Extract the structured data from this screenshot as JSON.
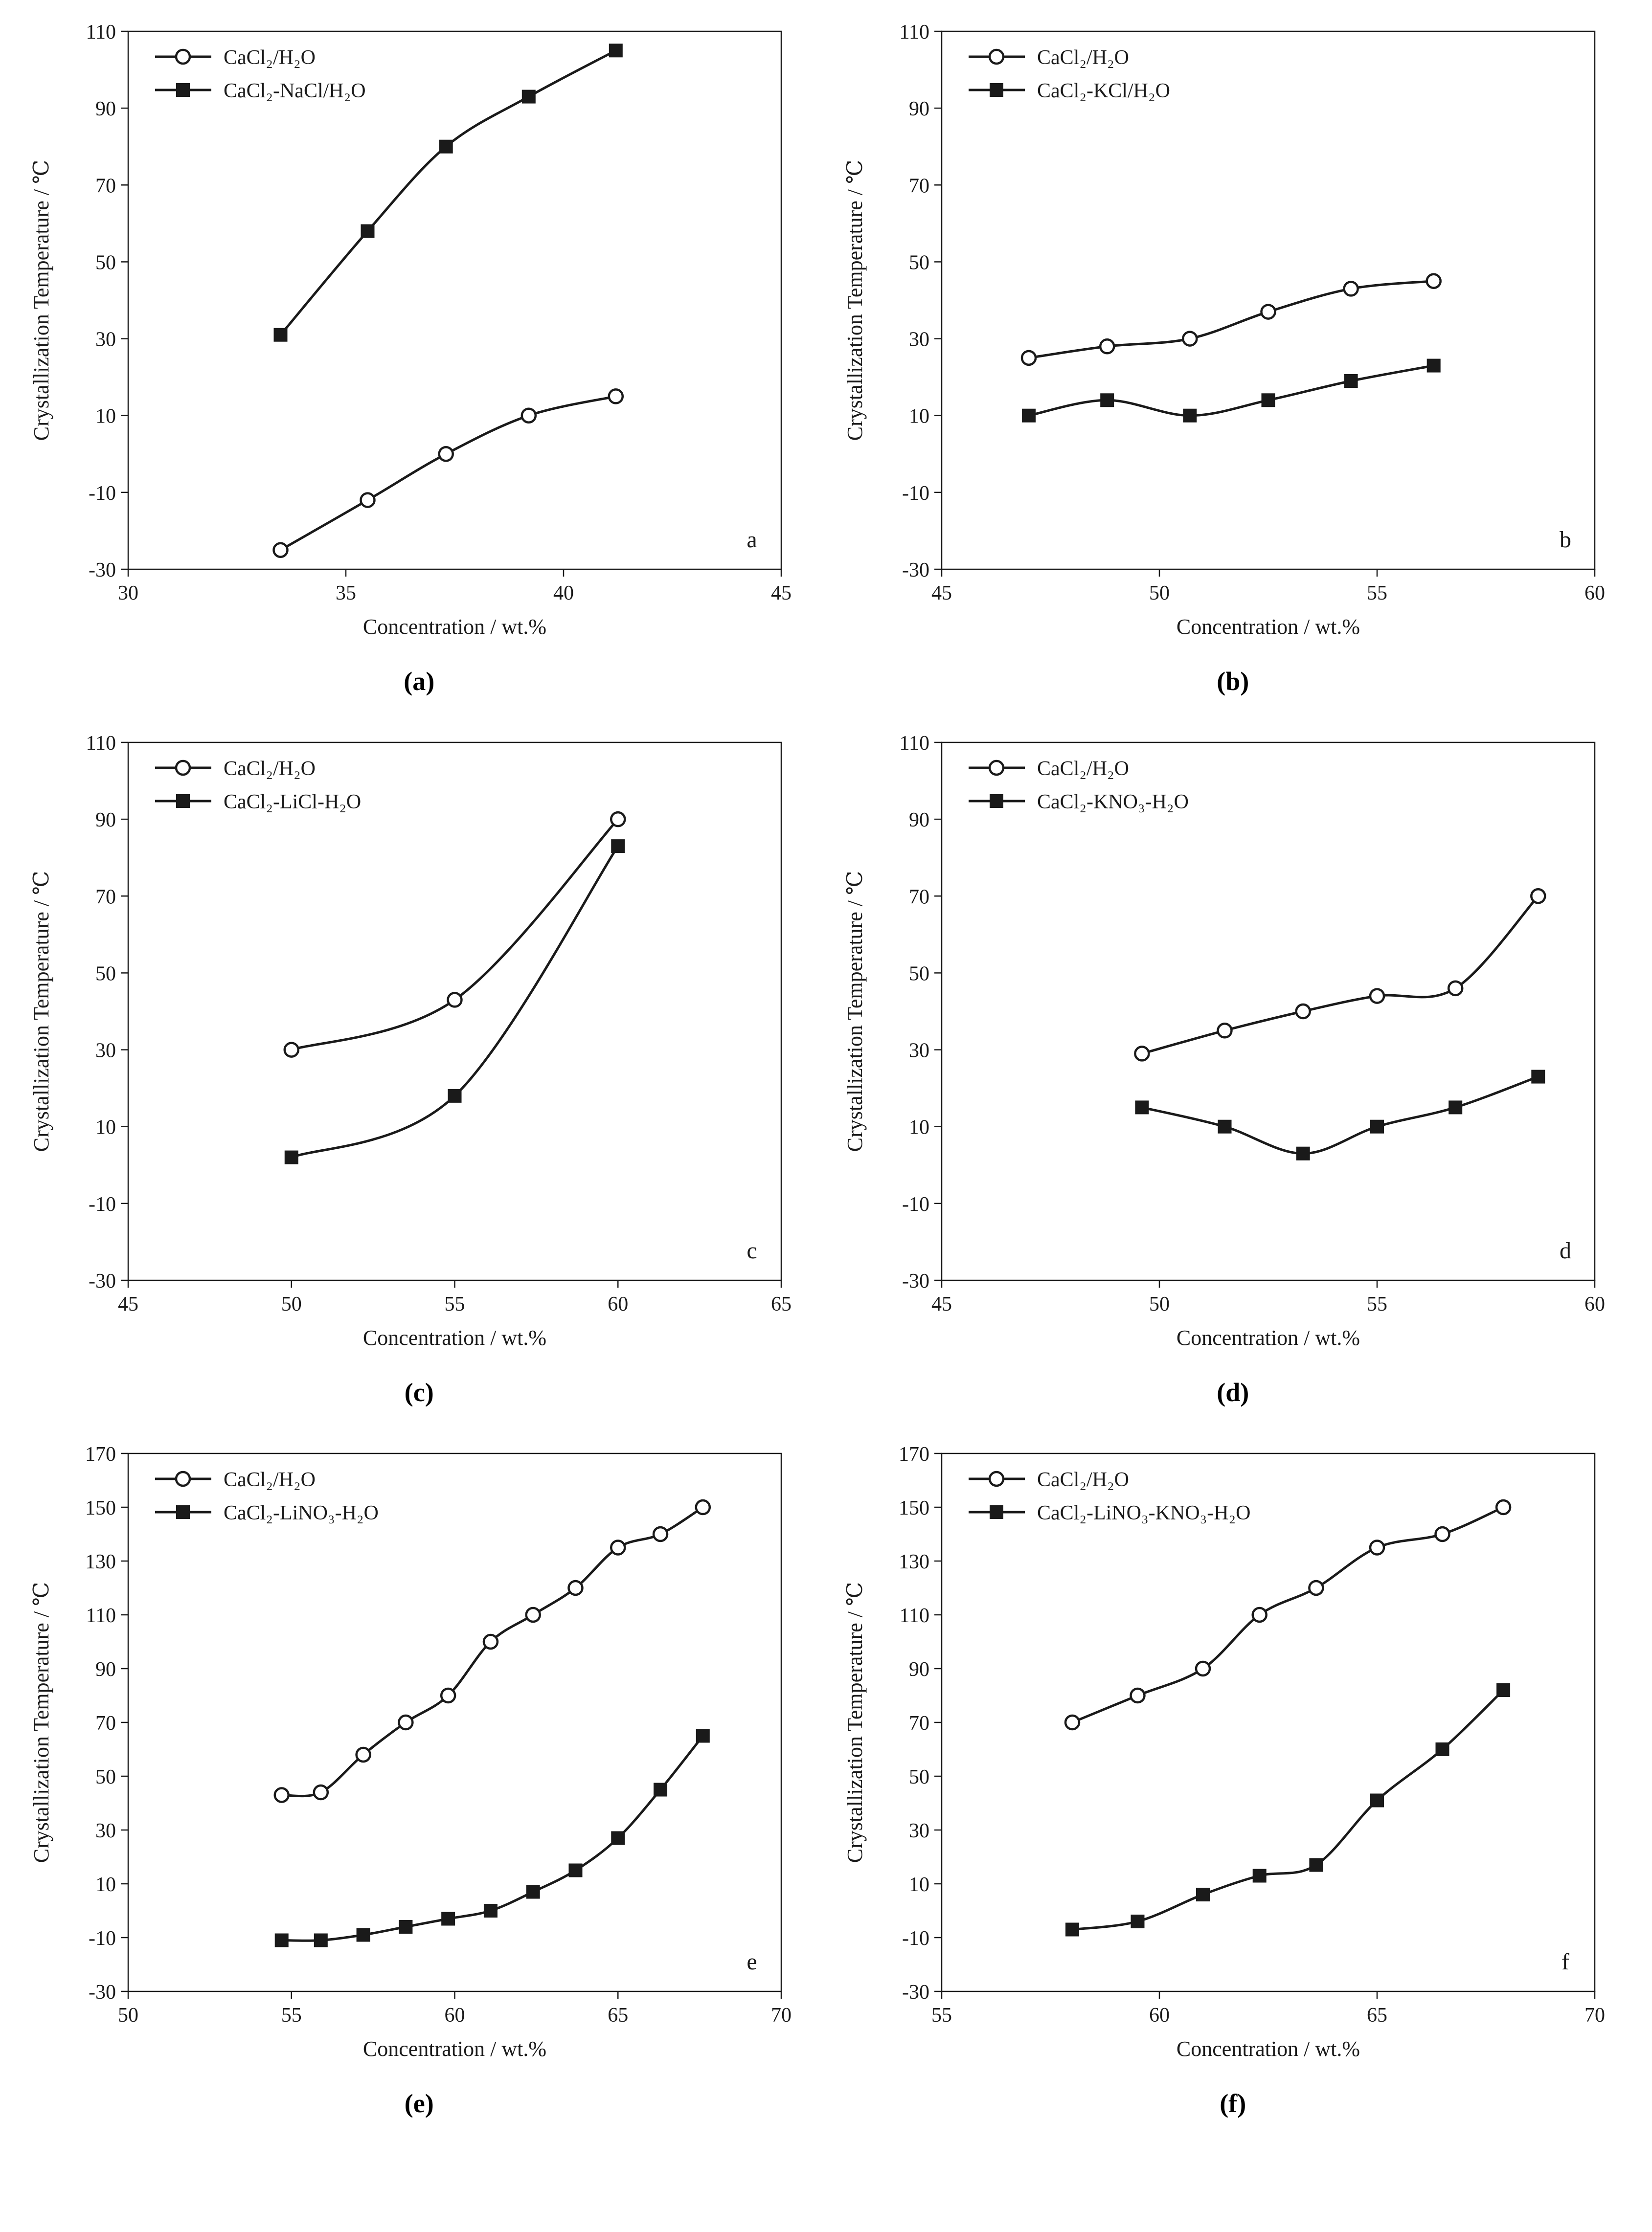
{
  "figure": {
    "captions": [
      "(a)",
      "(b)",
      "(c)",
      "(d)",
      "(e)",
      "(f)"
    ]
  },
  "chart_data": [
    {
      "type": "line",
      "panel_label": "a",
      "caption": "(a)",
      "xlabel": "Concentration / wt.%",
      "ylabel": "Crystallization Temperature / ℃",
      "xlim": [
        30,
        45
      ],
      "xticks": [
        30,
        35,
        40,
        45
      ],
      "ylim": [
        -30,
        110
      ],
      "yticks": [
        -30,
        -10,
        10,
        30,
        50,
        70,
        90,
        110
      ],
      "grid": false,
      "legend_position": "top-left",
      "series": [
        {
          "name": "CaCl₂/H₂O",
          "marker": "circle-open",
          "x": [
            33.5,
            35.5,
            37.3,
            39.2,
            41.2
          ],
          "y": [
            -25,
            -12,
            0,
            10,
            15
          ]
        },
        {
          "name": "CaCl₂-NaCl/H₂O",
          "marker": "square-filled",
          "x": [
            33.5,
            35.5,
            37.3,
            39.2,
            41.2
          ],
          "y": [
            31,
            58,
            80,
            93,
            105
          ]
        }
      ]
    },
    {
      "type": "line",
      "panel_label": "b",
      "caption": "(b)",
      "xlabel": "Concentration / wt.%",
      "ylabel": "Crystallization Temperature / ℃",
      "xlim": [
        45,
        60
      ],
      "xticks": [
        45,
        50,
        55,
        60
      ],
      "ylim": [
        -30,
        110
      ],
      "yticks": [
        -30,
        -10,
        10,
        30,
        50,
        70,
        90,
        110
      ],
      "grid": false,
      "legend_position": "top-left",
      "series": [
        {
          "name": "CaCl₂/H₂O",
          "marker": "circle-open",
          "x": [
            47.0,
            48.8,
            50.7,
            52.5,
            54.4,
            56.3
          ],
          "y": [
            25,
            28,
            30,
            37,
            43,
            45
          ]
        },
        {
          "name": "CaCl₂-KCl/H₂O",
          "marker": "square-filled",
          "x": [
            47.0,
            48.8,
            50.7,
            52.5,
            54.4,
            56.3
          ],
          "y": [
            10,
            14,
            10,
            14,
            19,
            23
          ]
        }
      ]
    },
    {
      "type": "line",
      "panel_label": "c",
      "caption": "(c)",
      "xlabel": "Concentration / wt.%",
      "ylabel": "Crystallization Temperature / ℃",
      "xlim": [
        45,
        65
      ],
      "xticks": [
        45,
        50,
        55,
        60,
        65
      ],
      "ylim": [
        -30,
        110
      ],
      "yticks": [
        -30,
        -10,
        10,
        30,
        50,
        70,
        90,
        110
      ],
      "grid": false,
      "legend_position": "top-left",
      "series": [
        {
          "name": "CaCl₂/H₂O",
          "marker": "circle-open",
          "x": [
            50,
            55,
            60
          ],
          "y": [
            30,
            43,
            90
          ]
        },
        {
          "name": "CaCl₂-LiCl-H₂O",
          "marker": "square-filled",
          "x": [
            50,
            55,
            60
          ],
          "y": [
            2,
            18,
            83
          ]
        }
      ]
    },
    {
      "type": "line",
      "panel_label": "d",
      "caption": "(d)",
      "xlabel": "Concentration / wt.%",
      "ylabel": "Crystallization Temperature / ℃",
      "xlim": [
        45,
        60
      ],
      "xticks": [
        45,
        50,
        55,
        60
      ],
      "ylim": [
        -30,
        110
      ],
      "yticks": [
        -30,
        -10,
        10,
        30,
        50,
        70,
        90,
        110
      ],
      "grid": false,
      "legend_position": "top-left",
      "series": [
        {
          "name": "CaCl₂/H₂O",
          "marker": "circle-open",
          "x": [
            49.6,
            51.5,
            53.3,
            55.0,
            56.8,
            58.7
          ],
          "y": [
            29,
            35,
            40,
            44,
            46,
            70
          ]
        },
        {
          "name": "CaCl₂-KNO₃-H₂O",
          "marker": "square-filled",
          "x": [
            49.6,
            51.5,
            53.3,
            55.0,
            56.8,
            58.7
          ],
          "y": [
            15,
            10,
            3,
            10,
            15,
            23
          ]
        }
      ]
    },
    {
      "type": "line",
      "panel_label": "e",
      "caption": "(e)",
      "xlabel": "Concentration / wt.%",
      "ylabel": "Crystallization Temperature / ℃",
      "xlim": [
        50,
        70
      ],
      "xticks": [
        50,
        55,
        60,
        65,
        70
      ],
      "ylim": [
        -30,
        170
      ],
      "yticks": [
        -30,
        -10,
        10,
        30,
        50,
        70,
        90,
        110,
        130,
        150,
        170
      ],
      "grid": false,
      "legend_position": "top-left",
      "series": [
        {
          "name": "CaCl₂/H₂O",
          "marker": "circle-open",
          "x": [
            54.7,
            55.9,
            57.2,
            58.5,
            59.8,
            61.1,
            62.4,
            63.7,
            65.0,
            66.3,
            67.6
          ],
          "y": [
            43,
            44,
            58,
            70,
            80,
            100,
            110,
            120,
            135,
            140,
            150
          ]
        },
        {
          "name": "CaCl₂-LiNO₃-H₂O",
          "marker": "square-filled",
          "x": [
            54.7,
            55.9,
            57.2,
            58.5,
            59.8,
            61.1,
            62.4,
            63.7,
            65.0,
            66.3,
            67.6
          ],
          "y": [
            -11,
            -11,
            -9,
            -6,
            -3,
            0,
            7,
            15,
            27,
            45,
            65
          ]
        }
      ]
    },
    {
      "type": "line",
      "panel_label": "f",
      "caption": "(f)",
      "xlabel": "Concentration / wt.%",
      "ylabel": "Crystallization Temperature / ℃",
      "xlim": [
        55,
        70
      ],
      "xticks": [
        55,
        60,
        65,
        70
      ],
      "ylim": [
        -30,
        170
      ],
      "yticks": [
        -30,
        -10,
        10,
        30,
        50,
        70,
        90,
        110,
        130,
        150,
        170
      ],
      "grid": false,
      "legend_position": "top-left",
      "series": [
        {
          "name": "CaCl₂/H₂O",
          "marker": "circle-open",
          "x": [
            58.0,
            59.5,
            61.0,
            62.3,
            63.6,
            65.0,
            66.5,
            67.9
          ],
          "y": [
            70,
            80,
            90,
            110,
            120,
            135,
            140,
            150
          ]
        },
        {
          "name": "CaCl₂-LiNO₃-KNO₃-H₂O",
          "marker": "square-filled",
          "x": [
            58.0,
            59.5,
            61.0,
            62.3,
            63.6,
            65.0,
            66.5,
            67.9
          ],
          "y": [
            -7,
            -4,
            6,
            13,
            17,
            41,
            60,
            82
          ]
        }
      ]
    }
  ]
}
